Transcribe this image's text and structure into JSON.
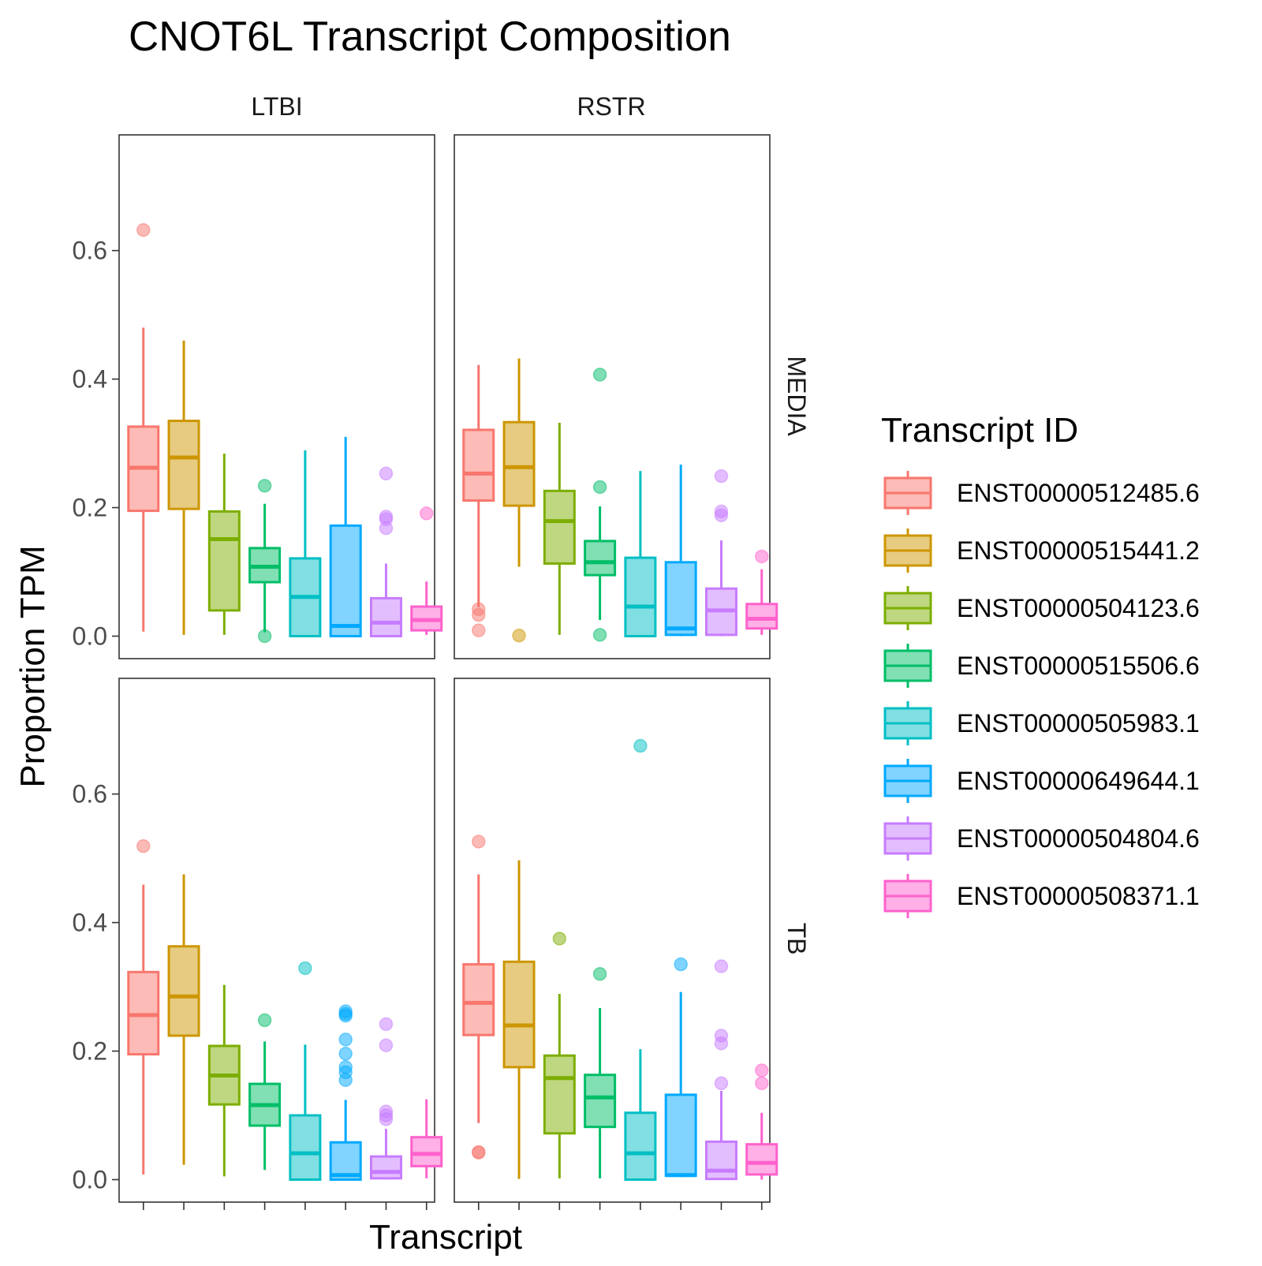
{
  "chart_data": {
    "type": "boxplot",
    "title": "CNOT6L Transcript Composition",
    "xlabel": "Transcript",
    "ylabel": "Proportion TPM",
    "ylim": [
      -0.035,
      0.78
    ],
    "yticks": [
      0.0,
      0.2,
      0.4,
      0.6
    ],
    "ytick_labels": [
      "0.0",
      "0.2",
      "0.4",
      "0.6"
    ],
    "column_facets": [
      "LTBI",
      "RSTR"
    ],
    "row_facets": [
      "MEDIA",
      "TB"
    ],
    "grid": false,
    "legend": {
      "title": "Transcript ID",
      "position": "right"
    },
    "series": [
      {
        "name": "ENST00000512485.6",
        "color": "#F8766D"
      },
      {
        "name": "ENST00000515441.2",
        "color": "#CD9600"
      },
      {
        "name": "ENST00000504123.6",
        "color": "#7CAE00"
      },
      {
        "name": "ENST00000515506.6",
        "color": "#00BE67"
      },
      {
        "name": "ENST00000505983.1",
        "color": "#00BFC4"
      },
      {
        "name": "ENST00000649644.1",
        "color": "#00A9FF"
      },
      {
        "name": "ENST00000504804.6",
        "color": "#C77CFF"
      },
      {
        "name": "ENST00000508371.1",
        "color": "#FF61CC"
      }
    ],
    "panels": [
      {
        "column": "LTBI",
        "row": "MEDIA",
        "boxes": [
          {
            "min": 0.007,
            "q1": 0.195,
            "median": 0.262,
            "q3": 0.326,
            "max": 0.48,
            "outliers": [
              0.632
            ]
          },
          {
            "min": 0.002,
            "q1": 0.198,
            "median": 0.278,
            "q3": 0.335,
            "max": 0.46,
            "outliers": []
          },
          {
            "min": 0.002,
            "q1": 0.04,
            "median": 0.151,
            "q3": 0.194,
            "max": 0.284,
            "outliers": []
          },
          {
            "min": 0.006,
            "q1": 0.084,
            "median": 0.108,
            "q3": 0.137,
            "max": 0.206,
            "outliers": [
              0.234,
              0.0
            ]
          },
          {
            "min": 0.0,
            "q1": 0.0,
            "median": 0.061,
            "q3": 0.121,
            "max": 0.289,
            "outliers": []
          },
          {
            "min": 0.0,
            "q1": 0.0,
            "median": 0.016,
            "q3": 0.172,
            "max": 0.31,
            "outliers": []
          },
          {
            "min": 0.0,
            "q1": 0.0,
            "median": 0.021,
            "q3": 0.059,
            "max": 0.113,
            "outliers": [
              0.253,
              0.186,
              0.182,
              0.168
            ]
          },
          {
            "min": 0.002,
            "q1": 0.009,
            "median": 0.025,
            "q3": 0.046,
            "max": 0.085,
            "outliers": [
              0.191
            ]
          }
        ]
      },
      {
        "column": "RSTR",
        "row": "MEDIA",
        "boxes": [
          {
            "min": 0.045,
            "q1": 0.211,
            "median": 0.253,
            "q3": 0.321,
            "max": 0.422,
            "outliers": [
              0.042,
              0.033,
              0.009
            ]
          },
          {
            "min": 0.108,
            "q1": 0.203,
            "median": 0.263,
            "q3": 0.333,
            "max": 0.432,
            "outliers": [
              0.001
            ]
          },
          {
            "min": 0.002,
            "q1": 0.113,
            "median": 0.179,
            "q3": 0.226,
            "max": 0.332,
            "outliers": []
          },
          {
            "min": 0.025,
            "q1": 0.095,
            "median": 0.115,
            "q3": 0.148,
            "max": 0.202,
            "outliers": [
              0.407,
              0.232,
              0.002
            ]
          },
          {
            "min": 0.0,
            "q1": 0.0,
            "median": 0.046,
            "q3": 0.122,
            "max": 0.257,
            "outliers": []
          },
          {
            "min": 0.0,
            "q1": 0.002,
            "median": 0.012,
            "q3": 0.115,
            "max": 0.267,
            "outliers": []
          },
          {
            "min": 0.0,
            "q1": 0.002,
            "median": 0.04,
            "q3": 0.074,
            "max": 0.149,
            "outliers": [
              0.249,
              0.194,
              0.188
            ]
          },
          {
            "min": 0.002,
            "q1": 0.012,
            "median": 0.027,
            "q3": 0.05,
            "max": 0.104,
            "outliers": [
              0.124
            ]
          }
        ]
      },
      {
        "column": "LTBI",
        "row": "TB",
        "boxes": [
          {
            "min": 0.008,
            "q1": 0.195,
            "median": 0.256,
            "q3": 0.323,
            "max": 0.459,
            "outliers": [
              0.519
            ]
          },
          {
            "min": 0.023,
            "q1": 0.224,
            "median": 0.285,
            "q3": 0.363,
            "max": 0.475,
            "outliers": []
          },
          {
            "min": 0.005,
            "q1": 0.117,
            "median": 0.162,
            "q3": 0.208,
            "max": 0.303,
            "outliers": []
          },
          {
            "min": 0.015,
            "q1": 0.084,
            "median": 0.116,
            "q3": 0.149,
            "max": 0.215,
            "outliers": [
              0.248
            ]
          },
          {
            "min": 0.0,
            "q1": 0.0,
            "median": 0.041,
            "q3": 0.1,
            "max": 0.21,
            "outliers": [
              0.329
            ]
          },
          {
            "min": 0.0,
            "q1": 0.0,
            "median": 0.007,
            "q3": 0.058,
            "max": 0.124,
            "outliers": [
              0.262,
              0.258,
              0.255,
              0.218,
              0.196,
              0.175,
              0.167,
              0.155
            ]
          },
          {
            "min": 0.0,
            "q1": 0.002,
            "median": 0.012,
            "q3": 0.036,
            "max": 0.079,
            "outliers": [
              0.242,
              0.209,
              0.106,
              0.1,
              0.094
            ]
          },
          {
            "min": 0.002,
            "q1": 0.021,
            "median": 0.04,
            "q3": 0.066,
            "max": 0.125,
            "outliers": []
          }
        ]
      },
      {
        "column": "RSTR",
        "row": "TB",
        "boxes": [
          {
            "min": 0.088,
            "q1": 0.225,
            "median": 0.275,
            "q3": 0.335,
            "max": 0.475,
            "outliers": [
              0.526,
              0.043,
              0.042
            ]
          },
          {
            "min": 0.001,
            "q1": 0.175,
            "median": 0.24,
            "q3": 0.339,
            "max": 0.497,
            "outliers": []
          },
          {
            "min": 0.002,
            "q1": 0.072,
            "median": 0.158,
            "q3": 0.193,
            "max": 0.289,
            "outliers": [
              0.375
            ]
          },
          {
            "min": 0.002,
            "q1": 0.082,
            "median": 0.128,
            "q3": 0.163,
            "max": 0.267,
            "outliers": [
              0.32
            ]
          },
          {
            "min": 0.0,
            "q1": 0.0,
            "median": 0.041,
            "q3": 0.104,
            "max": 0.203,
            "outliers": [
              0.675
            ]
          },
          {
            "min": 0.004,
            "q1": 0.006,
            "median": 0.007,
            "q3": 0.132,
            "max": 0.292,
            "outliers": [
              0.335
            ]
          },
          {
            "min": 0.0,
            "q1": 0.001,
            "median": 0.014,
            "q3": 0.059,
            "max": 0.138,
            "outliers": [
              0.332,
              0.224,
              0.212,
              0.15
            ]
          },
          {
            "min": 0.0,
            "q1": 0.008,
            "median": 0.026,
            "q3": 0.055,
            "max": 0.104,
            "outliers": [
              0.17,
              0.15
            ]
          }
        ]
      }
    ]
  }
}
